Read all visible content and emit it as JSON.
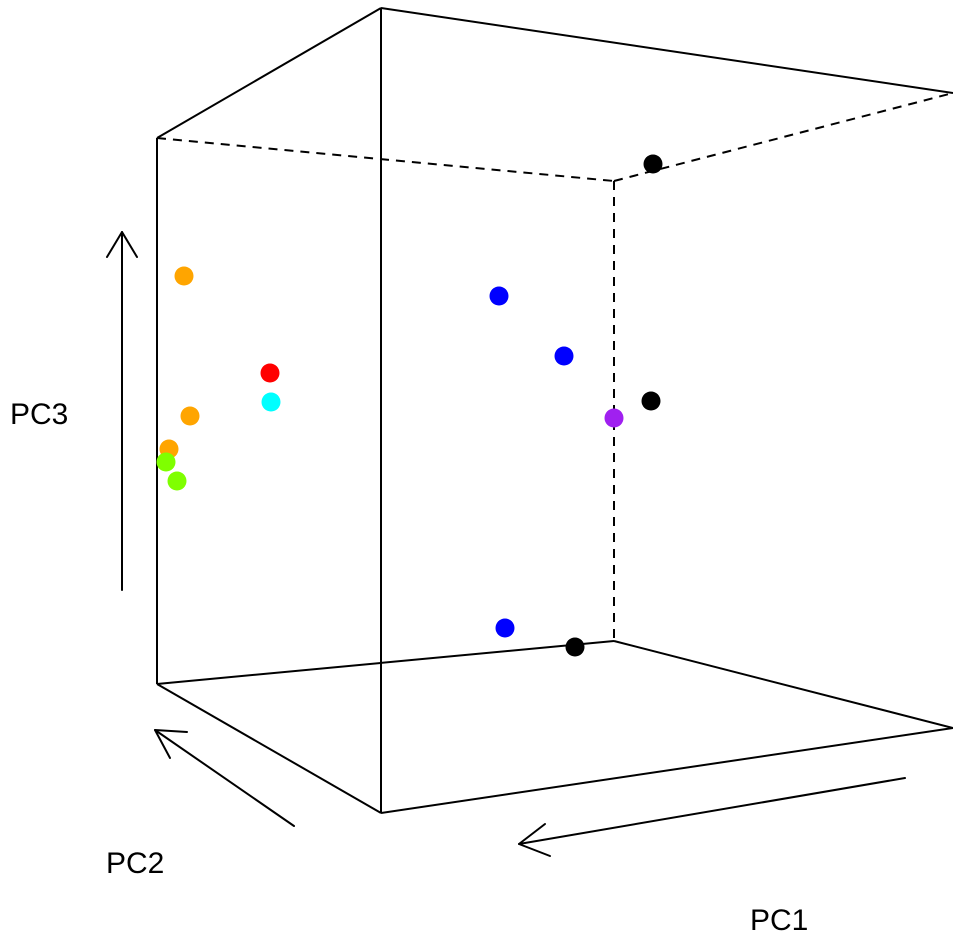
{
  "chart_data": {
    "type": "scatter",
    "title": "",
    "axes": {
      "x_label": "PC1",
      "y_label": "PC2",
      "z_label": "PC3"
    },
    "box": true,
    "grid": false,
    "points": [
      {
        "color": "#000000",
        "pc1": -0.15,
        "pc2": 1.0,
        "pc3": 1.0
      },
      {
        "color": "#000000",
        "pc1": -0.09,
        "pc2": 1.0,
        "pc3": 0.5
      },
      {
        "color": "#000000",
        "pc1": 0.1,
        "pc2": 1.0,
        "pc3": 0.0
      },
      {
        "color": "#0000ff",
        "pc1": 0.21,
        "pc2": 1.0,
        "pc3": 0.72
      },
      {
        "color": "#0000ff",
        "pc1": 0.11,
        "pc2": 1.0,
        "pc3": 0.62
      },
      {
        "color": "#0000ff",
        "pc1": 0.28,
        "pc2": 1.0,
        "pc3": 0.04
      },
      {
        "color": "#a020f0",
        "pc1": 0.0,
        "pc2": 1.0,
        "pc3": 0.47
      },
      {
        "color": "#ff0000",
        "pc1": 0.82,
        "pc2": 0.0,
        "pc3": 0.57
      },
      {
        "color": "#00ffff",
        "pc1": 0.81,
        "pc2": 0.0,
        "pc3": 0.52
      },
      {
        "color": "#ffa500",
        "pc1": 0.94,
        "pc2": 0.0,
        "pc3": 0.74
      },
      {
        "color": "#ffa500",
        "pc1": 0.93,
        "pc2": 0.0,
        "pc3": 0.49
      },
      {
        "color": "#ffa500",
        "pc1": 0.96,
        "pc2": 0.0,
        "pc3": 0.43
      },
      {
        "color": "#7fff00",
        "pc1": 0.98,
        "pc2": 0.0,
        "pc3": 0.4
      },
      {
        "color": "#7fff00",
        "pc1": 0.96,
        "pc2": 0.0,
        "pc3": 0.37
      }
    ]
  }
}
